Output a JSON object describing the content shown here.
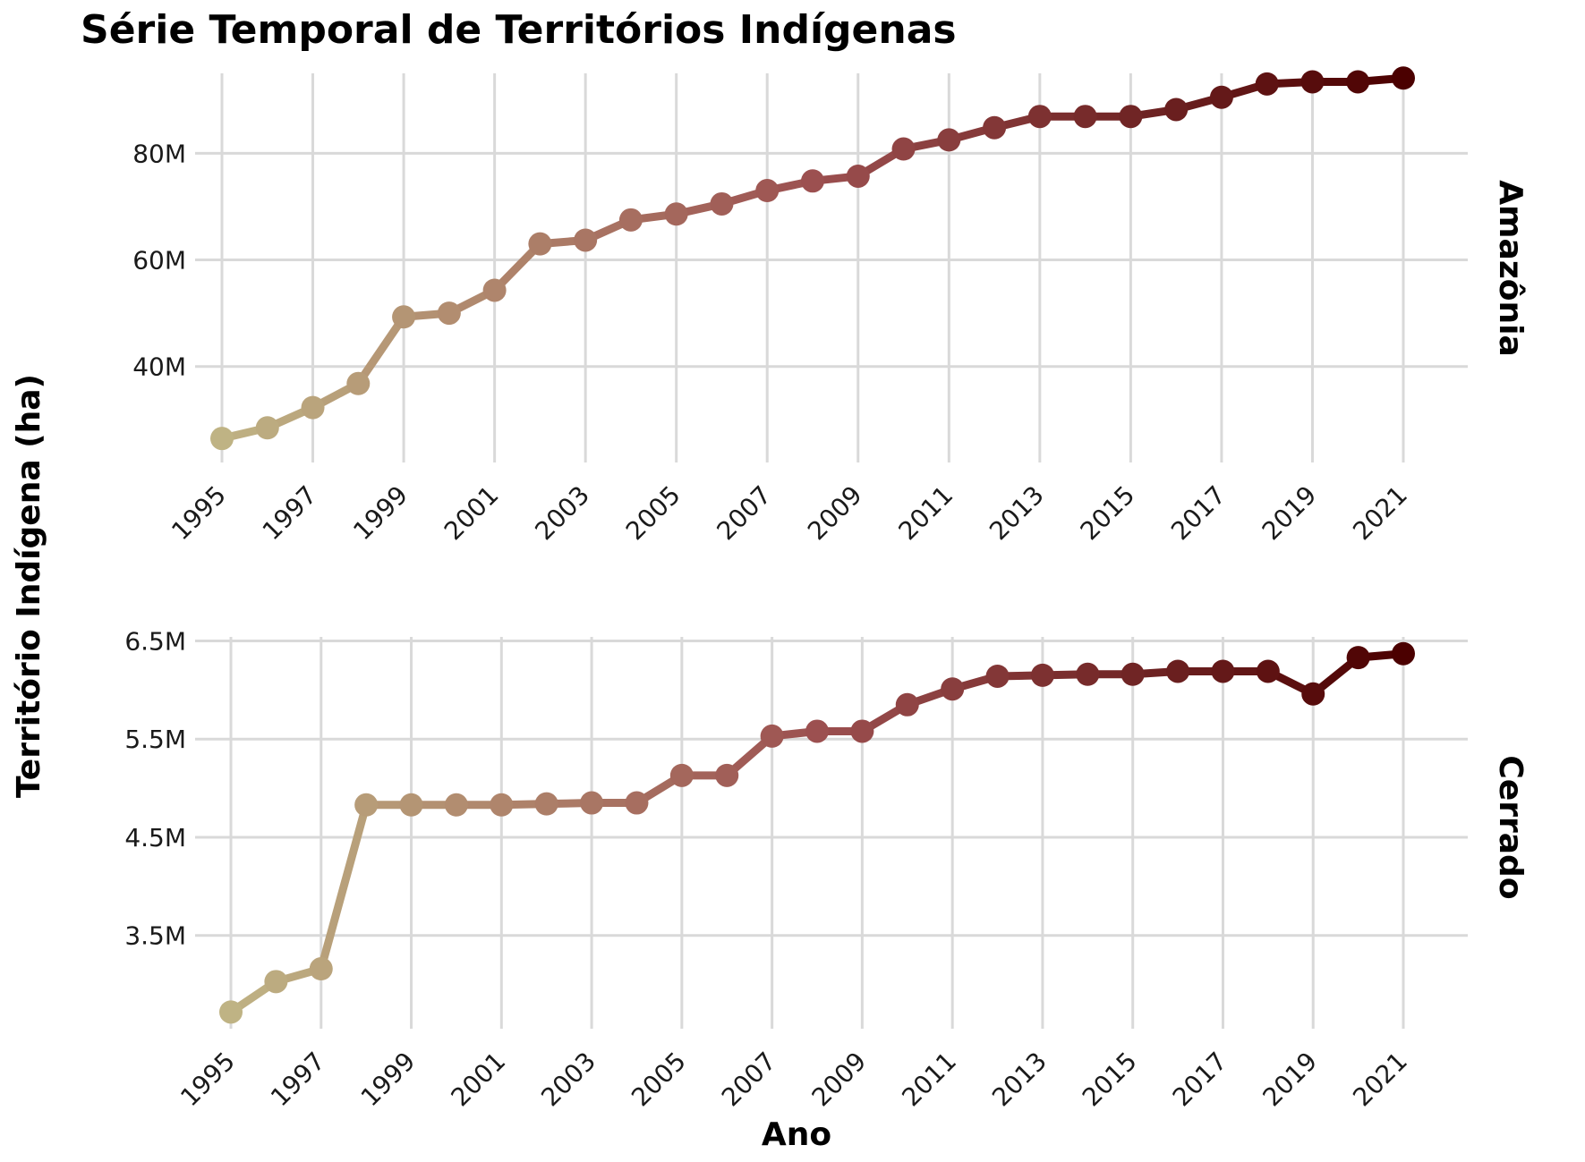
{
  "chart_data": {
    "type": "line",
    "title": "Série Temporal de Territórios Indígenas",
    "xlabel": "Ano",
    "ylabel": "Território Indígena (ha)",
    "x_tick_labels": [
      "1995",
      "1997",
      "1999",
      "2001",
      "2003",
      "2005",
      "2007",
      "2009",
      "2011",
      "2013",
      "2015",
      "2017",
      "2019",
      "2021"
    ],
    "color_scale": {
      "low": "#bfb384",
      "mid": "#9c5050",
      "high": "#4b0000"
    },
    "grid": true,
    "panels": [
      {
        "name": "Amazônia",
        "ylim": [
          22000000,
          97000000
        ],
        "y_ticks": [
          40000000,
          60000000,
          80000000
        ],
        "y_tick_labels": [
          "40M",
          "60M",
          "80M"
        ],
        "x": [
          1995,
          1996,
          1997,
          1998,
          1999,
          2000,
          2001,
          2002,
          2003,
          2004,
          2005,
          2006,
          2007,
          2008,
          2009,
          2010,
          2011,
          2012,
          2013,
          2014,
          2015,
          2016,
          2017,
          2018,
          2019,
          2020,
          2021
        ],
        "values": [
          26500000,
          28500000,
          32300000,
          36800000,
          49300000,
          50000000,
          54300000,
          63000000,
          63700000,
          67500000,
          68600000,
          70500000,
          73000000,
          74800000,
          75700000,
          80800000,
          82500000,
          84800000,
          86900000,
          86900000,
          86900000,
          88200000,
          90500000,
          93000000,
          93400000,
          93400000,
          94100000
        ]
      },
      {
        "name": "Cerrado",
        "ylim": [
          2550000,
          6650000
        ],
        "y_ticks": [
          3500000,
          4500000,
          5500000,
          6500000
        ],
        "y_tick_labels": [
          "3.5M",
          "4.5M",
          "5.5M",
          "6.5M"
        ],
        "x": [
          1995,
          1996,
          1997,
          1998,
          1999,
          2000,
          2001,
          2002,
          2003,
          2004,
          2005,
          2006,
          2007,
          2008,
          2009,
          2010,
          2011,
          2012,
          2013,
          2014,
          2015,
          2016,
          2017,
          2018,
          2019,
          2020,
          2021
        ],
        "values": [
          2720000,
          3030000,
          3160000,
          4830000,
          4830000,
          4830000,
          4830000,
          4840000,
          4850000,
          4850000,
          5130000,
          5130000,
          5530000,
          5580000,
          5580000,
          5850000,
          6010000,
          6140000,
          6150000,
          6160000,
          6160000,
          6190000,
          6190000,
          6190000,
          5960000,
          6330000,
          6370000
        ]
      }
    ]
  }
}
